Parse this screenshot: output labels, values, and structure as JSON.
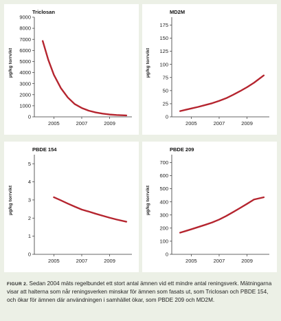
{
  "colors": {
    "background": "#ecf0e6",
    "panel": "#ffffff",
    "line": "#b5252f",
    "axis": "#333333"
  },
  "caption": {
    "label": "FIGUR 2.",
    "text": "Sedan 2004 mäts regelbundet ett stort antal ämnen vid ett mindre antal reningsverk. Mätningarna visar att halterna som når reningsverken minskar för ämnen som fasats ut, som Triclosan och PBDE 154, och ökar för ämnen där användningen i samhället ökar, som PBDE 209 och MD2M."
  },
  "chart_data": [
    {
      "type": "line",
      "title": "Triclosan",
      "ylabel": "µg/kg torrvikt",
      "xlabel": "",
      "ylim": [
        0,
        9000
      ],
      "yticks": [
        0,
        1000,
        2000,
        3000,
        4000,
        5000,
        6000,
        7000,
        8000,
        9000
      ],
      "xlim": [
        2003.6,
        2010.6
      ],
      "xticks": [
        2005,
        2007,
        2009
      ],
      "x": [
        2004.2,
        2004.6,
        2005.0,
        2005.5,
        2006.0,
        2006.5,
        2007.0,
        2007.5,
        2008.0,
        2008.5,
        2009.0,
        2009.5,
        2010.2
      ],
      "values": [
        6850,
        5150,
        3800,
        2600,
        1750,
        1150,
        800,
        560,
        400,
        290,
        210,
        165,
        130
      ],
      "grid": false
    },
    {
      "type": "line",
      "title": "MD2M",
      "ylabel": "µg/kg torrvikt",
      "xlabel": "",
      "ylim": [
        0,
        190
      ],
      "yticks": [
        0,
        25,
        50,
        75,
        100,
        125,
        150,
        175
      ],
      "xlim": [
        2003.6,
        2010.6
      ],
      "xticks": [
        2005,
        2007,
        2009
      ],
      "x": [
        2004.2,
        2004.6,
        2005.0,
        2005.5,
        2006.0,
        2006.5,
        2007.0,
        2007.5,
        2008.0,
        2008.5,
        2009.0,
        2009.5,
        2010.2
      ],
      "values": [
        11,
        13.5,
        16,
        19,
        22.5,
        26,
        30.5,
        35.5,
        42,
        49,
        56.5,
        65,
        79
      ],
      "grid": false
    },
    {
      "type": "line",
      "title": "PBDE 154",
      "ylabel": "µg/kg torrvikt",
      "xlabel": "",
      "ylim": [
        0,
        5.5
      ],
      "yticks": [
        0,
        1,
        2,
        3,
        4,
        5
      ],
      "xlim": [
        2003.6,
        2010.6
      ],
      "xticks": [
        2005,
        2007,
        2009
      ],
      "x": [
        2005.0,
        2005.5,
        2006.0,
        2006.5,
        2007.0,
        2007.5,
        2008.0,
        2008.5,
        2009.0,
        2009.5,
        2010.2
      ],
      "values": [
        3.15,
        2.98,
        2.8,
        2.63,
        2.47,
        2.36,
        2.24,
        2.13,
        2.02,
        1.92,
        1.8
      ],
      "grid": false
    },
    {
      "type": "line",
      "title": "PBDE 209",
      "ylabel": "µg/kg torrvikt",
      "xlabel": "",
      "ylim": [
        0,
        760
      ],
      "yticks": [
        0,
        100,
        200,
        300,
        400,
        500,
        600,
        700
      ],
      "xlim": [
        2003.6,
        2010.6
      ],
      "xticks": [
        2005,
        2007,
        2009
      ],
      "x": [
        2004.2,
        2004.6,
        2005.0,
        2005.5,
        2006.0,
        2006.5,
        2007.0,
        2007.5,
        2008.0,
        2008.5,
        2009.0,
        2009.5,
        2010.2
      ],
      "values": [
        165,
        178,
        191,
        208,
        225,
        243,
        265,
        292,
        322,
        353,
        385,
        418,
        435
      ],
      "grid": false
    }
  ]
}
